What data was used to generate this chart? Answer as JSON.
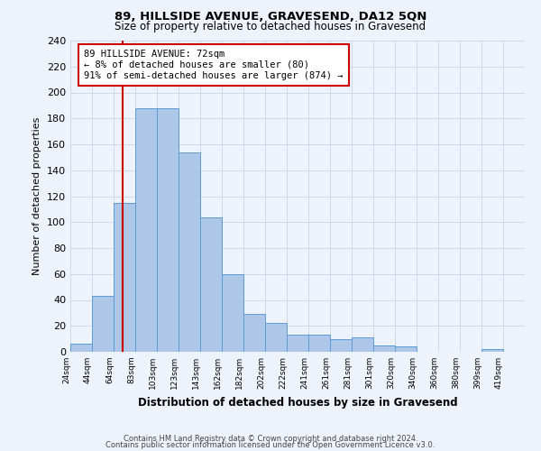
{
  "title": "89, HILLSIDE AVENUE, GRAVESEND, DA12 5QN",
  "subtitle": "Size of property relative to detached houses in Gravesend",
  "xlabel": "Distribution of detached houses by size in Gravesend",
  "ylabel": "Number of detached properties",
  "bin_labels": [
    "24sqm",
    "44sqm",
    "64sqm",
    "83sqm",
    "103sqm",
    "123sqm",
    "143sqm",
    "162sqm",
    "182sqm",
    "202sqm",
    "222sqm",
    "241sqm",
    "261sqm",
    "281sqm",
    "301sqm",
    "320sqm",
    "340sqm",
    "360sqm",
    "380sqm",
    "399sqm",
    "419sqm"
  ],
  "bar_heights": [
    6,
    43,
    115,
    188,
    188,
    154,
    104,
    60,
    29,
    22,
    13,
    13,
    10,
    11,
    5,
    4,
    0,
    0,
    0,
    2,
    0
  ],
  "bar_color": "#aec6e8",
  "bar_edge_color": "#5b9bd5",
  "bg_color": "#eef3fb",
  "grid_color": "#c8d4e8",
  "vline_color": "#cc0000",
  "vline_x_index": 2.42,
  "annotation_title": "89 HILLSIDE AVENUE: 72sqm",
  "annotation_line1": "← 8% of detached houses are smaller (80)",
  "annotation_line2": "91% of semi-detached houses are larger (874) →",
  "annotation_box_color": "#ffffff",
  "annotation_box_edge": "#cc0000",
  "ylim": [
    0,
    240
  ],
  "yticks": [
    0,
    20,
    40,
    60,
    80,
    100,
    120,
    140,
    160,
    180,
    200,
    220,
    240
  ],
  "footer1": "Contains HM Land Registry data © Crown copyright and database right 2024.",
  "footer2": "Contains public sector information licensed under the Open Government Licence v3.0."
}
